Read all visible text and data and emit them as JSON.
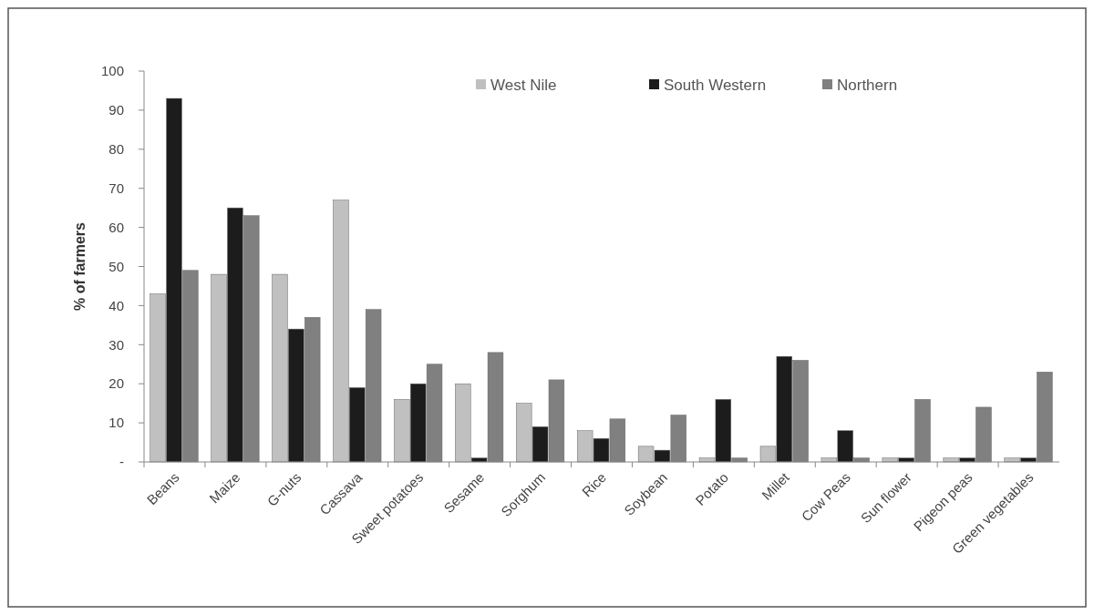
{
  "chart_data": {
    "type": "bar",
    "ylabel": "% of farmers",
    "categories": [
      "Beans",
      "Maize",
      "G-nuts",
      "Cassava",
      "Sweet potatoes",
      "Sesame",
      "Sorghum",
      "Rice",
      "Soybean",
      "Potato",
      "Millet",
      "Cow Peas",
      "Sun flower",
      "Pigeon peas",
      "Green vegetables"
    ],
    "series": [
      {
        "name": "West Nile",
        "color": "#c0c0c0",
        "values": [
          43,
          48,
          48,
          67,
          16,
          20,
          15,
          8,
          4,
          1,
          4,
          1,
          1,
          1,
          1
        ]
      },
      {
        "name": "South Western",
        "color": "#1c1c1c",
        "values": [
          93,
          65,
          34,
          19,
          20,
          1,
          9,
          6,
          3,
          16,
          27,
          8,
          1,
          1,
          1
        ]
      },
      {
        "name": "Northern",
        "color": "#808080",
        "values": [
          49,
          63,
          37,
          39,
          25,
          28,
          21,
          11,
          12,
          1,
          26,
          1,
          16,
          14,
          23
        ]
      }
    ],
    "ylim": [
      0,
      100
    ],
    "yticks": [
      {
        "value": 0,
        "label": "-"
      },
      10,
      20,
      30,
      40,
      50,
      60,
      70,
      80,
      90,
      100
    ],
    "grid": false,
    "legend": "top right"
  }
}
